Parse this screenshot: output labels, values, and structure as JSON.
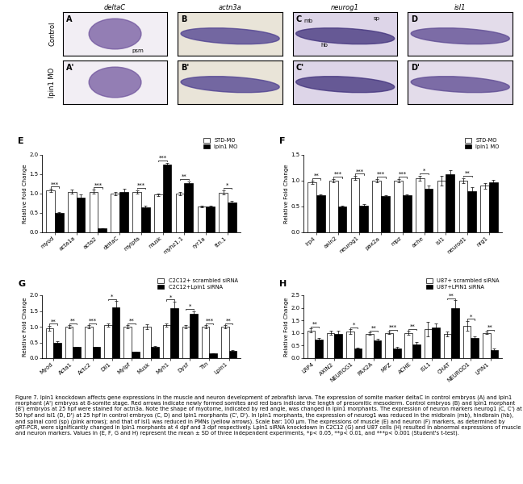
{
  "image_panels": {
    "columns": [
      "deltaC",
      "actn3a",
      "neurog1",
      "isl1"
    ],
    "rows": [
      "Control",
      "lpin1 MO"
    ],
    "labels": [
      [
        "A",
        "B",
        "C",
        "D"
      ],
      [
        "A'",
        "B'",
        "C'",
        "D'"
      ]
    ],
    "annotations": [
      {
        "panel": "A",
        "text": "psm"
      },
      {
        "panel": "C",
        "text": "mb"
      },
      {
        "panel": "C",
        "text": "hb"
      },
      {
        "panel": "C",
        "text": "sp"
      }
    ]
  },
  "chart_data": [
    {
      "type": "bar",
      "title": "E",
      "y_label": "Relative Fold Change",
      "legend": "upper right",
      "categories": [
        "myod",
        "acta1a",
        "acta2",
        "deltaC",
        "mylpfa",
        "musk",
        "myhz1.1",
        "ryr1a",
        "ttn.1"
      ],
      "series": [
        {
          "name": "STD-MO",
          "color": "#ffffff",
          "values": [
            1.08,
            1.05,
            1.05,
            1.0,
            1.05,
            0.97,
            1.0,
            0.67,
            1.03
          ],
          "errors": [
            0.04,
            0.05,
            0.05,
            0.05,
            0.04,
            0.03,
            0.04,
            0.02,
            0.06
          ]
        },
        {
          "name": "lpin1 MO",
          "color": "#000000",
          "values": [
            0.5,
            0.9,
            0.1,
            1.05,
            0.65,
            1.75,
            1.27,
            0.67,
            0.77
          ],
          "errors": [
            0.02,
            0.08,
            0.01,
            0.08,
            0.03,
            0.05,
            0.05,
            0.02,
            0.05
          ]
        }
      ],
      "significance": [
        "***",
        "",
        "***",
        "",
        "***",
        "***",
        "**",
        "",
        "*"
      ],
      "ylim": [
        0,
        2.0
      ],
      "yticks": [
        {
          "value": 0,
          "label": "0.0"
        },
        {
          "value": 0.5,
          "label": "0.5"
        },
        {
          "value": 1.0,
          "label": "1.0"
        },
        {
          "value": 1.5,
          "label": "1.5"
        },
        {
          "value": 2.0,
          "label": "2.0"
        }
      ]
    },
    {
      "type": "bar",
      "title": "F",
      "y_label": "Relative Fold Change",
      "legend": "upper right",
      "categories": [
        "lrp4",
        "axin2",
        "neurog1",
        "pax2a",
        "mpz",
        "ache",
        "isl1",
        "neurod1",
        "nrg1"
      ],
      "series": [
        {
          "name": "STD-MO",
          "color": "#ffffff",
          "values": [
            0.97,
            1.0,
            1.05,
            1.0,
            1.0,
            1.05,
            1.0,
            1.0,
            0.9
          ],
          "errors": [
            0.03,
            0.03,
            0.04,
            0.03,
            0.03,
            0.05,
            0.1,
            0.05,
            0.05
          ]
        },
        {
          "name": "lpin1 MO",
          "color": "#000000",
          "values": [
            0.72,
            0.5,
            0.52,
            0.7,
            0.72,
            0.85,
            1.12,
            0.8,
            0.97
          ],
          "errors": [
            0.02,
            0.01,
            0.02,
            0.02,
            0.02,
            0.05,
            0.08,
            0.08,
            0.05
          ]
        }
      ],
      "significance": [
        "**",
        "***",
        "***",
        "***",
        "***",
        "*",
        "",
        "**",
        ""
      ],
      "ylim": [
        0,
        1.5
      ],
      "yticks": [
        {
          "value": 0,
          "label": "0.0"
        },
        {
          "value": 0.5,
          "label": "0.5"
        },
        {
          "value": 1.0,
          "label": "1.0"
        },
        {
          "value": 1.5,
          "label": "1.5"
        }
      ]
    },
    {
      "type": "bar",
      "title": "G",
      "y_label": "Relative Fold Change",
      "legend": "upper right",
      "categories": [
        "Myod",
        "Acta1",
        "Actc2",
        "Dll1",
        "Mylpf",
        "Musk",
        "Myh1",
        "Dysf",
        "Ttn",
        "Lpin1"
      ],
      "series": [
        {
          "name": "C2C12+ scrambled siRNA",
          "color": "#ffffff",
          "values": [
            0.95,
            1.0,
            1.0,
            1.05,
            1.0,
            1.0,
            1.05,
            1.0,
            1.0,
            1.0
          ],
          "errors": [
            0.08,
            0.05,
            0.05,
            0.05,
            0.05,
            0.08,
            0.06,
            0.05,
            0.05,
            0.05
          ]
        },
        {
          "name": "C2C12+Lpin1 siRNA",
          "color": "#000000",
          "values": [
            0.5,
            0.35,
            0.35,
            1.62,
            0.2,
            0.35,
            1.6,
            1.42,
            0.15,
            0.22
          ],
          "errors": [
            0.05,
            0.02,
            0.02,
            0.2,
            0.01,
            0.03,
            0.2,
            0.08,
            0.01,
            0.04
          ]
        }
      ],
      "significance": [
        "**",
        "**",
        "***",
        "*",
        "**",
        "",
        "*",
        "*",
        "***",
        "**"
      ],
      "ylim": [
        0,
        2.0
      ],
      "yticks": [
        {
          "value": 0,
          "label": "0.0"
        },
        {
          "value": 0.5,
          "label": "0.5"
        },
        {
          "value": 1.0,
          "label": "1.0"
        },
        {
          "value": 1.5,
          "label": "1.5"
        },
        {
          "value": 2.0,
          "label": "2.0"
        }
      ]
    },
    {
      "type": "bar",
      "title": "H",
      "y_label": "Relative Fold Change",
      "legend": "upper right",
      "categories": [
        "LRP4",
        "AXIN2",
        "NEUROG1",
        "PAX2A",
        "MPZ",
        "ACHE",
        "ISL1",
        "CHAT",
        "NEUROD1",
        "LPIN1"
      ],
      "series": [
        {
          "name": "U87+ scrambled siRNA",
          "color": "#ffffff",
          "values": [
            1.1,
            1.0,
            1.05,
            0.97,
            1.0,
            1.0,
            1.15,
            0.95,
            1.28,
            1.0
          ],
          "errors": [
            0.08,
            0.08,
            0.1,
            0.05,
            0.05,
            0.08,
            0.3,
            0.1,
            0.2,
            0.05
          ]
        },
        {
          "name": "U87+LPIN1 siRNA",
          "color": "#000000",
          "values": [
            0.75,
            0.95,
            0.38,
            0.7,
            0.4,
            0.55,
            1.22,
            2.0,
            0.8,
            0.32
          ],
          "errors": [
            0.06,
            0.15,
            0.05,
            0.06,
            0.04,
            0.1,
            0.15,
            0.3,
            0.08,
            0.08
          ]
        }
      ],
      "significance": [
        "**",
        "",
        "*",
        "**",
        "***",
        "**",
        "",
        "**",
        "*",
        "**"
      ],
      "ylim": [
        0,
        2.5
      ],
      "yticks": [
        {
          "value": 0,
          "label": "0.0"
        },
        {
          "value": 0.5,
          "label": "0.5"
        },
        {
          "value": 1.0,
          "label": "1.0"
        },
        {
          "value": 1.5,
          "label": "1.5"
        },
        {
          "value": 2.0,
          "label": "2.0"
        },
        {
          "value": 2.5,
          "label": "2.5"
        }
      ]
    }
  ],
  "caption": "Figure 7. lpin1 knockdown affects gene expressions in the muscle and neuron development of zebrafish larva. The expression of somite marker deltaC in control embryos (A) and lpin1 morphant (A') embryos at 8-somite stage. Red arrows indicate newly formed somites and red bars indicate the length of presomitic mesoderm. Control embryos (B) and lpin1 morphant (B') embryos at 25 hpf were stained for actn3a. Note the shape of myotome, indicated by red angle, was changed in lpin1 morphants. The expression of neuron markers neurog1 (C, C') at 50 hpf and isl1 (D, D') at 25 hpf in control embryos (C, D) and lpin1 morphants (C', D'). In lpin1 morphants, the expression of neurog1 was reduced in the midbrain (mb), hindbrain (hb), and spinal cord (sp) (pink arrows); and that of isl1 was reduced in PMNs (yellow arrows). Scale bar: 100 μm. The expressions of muscle (E) and neuron (F) markers, as determined by qRT-PCR, were significantly changed in lpin1 morphants at 4 dpf and 3 dpf respectively. Lpin1 siRNA knockdown in C2C12 (G) and U87 cells (H) resulted in abnormal expressions of muscle and neuron markers. Values in (E, F, G and H) represent the mean ± SD of three independent experiments, *p< 0.05, **p< 0.01, and ***p< 0.001 (Student's t-test)."
}
